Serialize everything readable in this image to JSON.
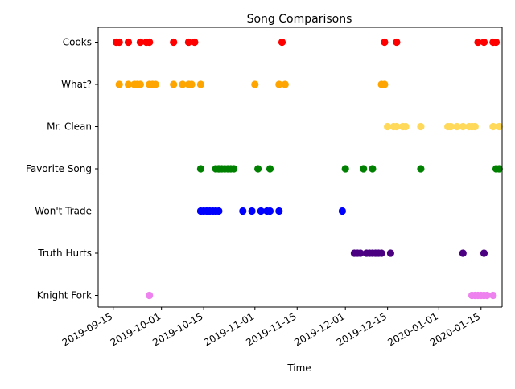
{
  "chart_data": {
    "type": "scatter",
    "title": "Song Comparisons",
    "xlabel": "Time",
    "ylabel": "",
    "x_axis": {
      "type": "date",
      "range": [
        "2019-09-10",
        "2020-01-22"
      ],
      "ticks": [
        "2019-09-15",
        "2019-10-01",
        "2019-10-15",
        "2019-11-01",
        "2019-11-15",
        "2019-12-01",
        "2019-12-15",
        "2020-01-01",
        "2020-01-15"
      ]
    },
    "categories": [
      "Cooks",
      "What?",
      "Mr. Clean",
      "Favorite Song",
      "Won't Trade",
      "Truth Hurts",
      "Knight Fork"
    ],
    "grid": false,
    "series": [
      {
        "category": "Cooks",
        "color": "#ff0000",
        "x": [
          "2019-09-16",
          "2019-09-17",
          "2019-09-20",
          "2019-09-24",
          "2019-09-26",
          "2019-09-27",
          "2019-10-05",
          "2019-10-10",
          "2019-10-12",
          "2019-11-10",
          "2019-12-14",
          "2019-12-18",
          "2020-01-14",
          "2020-01-16",
          "2020-01-19",
          "2020-01-20"
        ]
      },
      {
        "category": "What?",
        "color": "#ffa500",
        "x": [
          "2019-09-17",
          "2019-09-20",
          "2019-09-22",
          "2019-09-23",
          "2019-09-24",
          "2019-09-27",
          "2019-09-28",
          "2019-09-29",
          "2019-10-05",
          "2019-10-08",
          "2019-10-10",
          "2019-10-11",
          "2019-10-14",
          "2019-11-01",
          "2019-11-09",
          "2019-11-11",
          "2019-12-13",
          "2019-12-14"
        ]
      },
      {
        "category": "Mr. Clean",
        "color": "#ffd95a",
        "x": [
          "2019-12-15",
          "2019-12-17",
          "2019-12-18",
          "2019-12-20",
          "2019-12-21",
          "2019-12-26",
          "2020-01-04",
          "2020-01-05",
          "2020-01-07",
          "2020-01-09",
          "2020-01-11",
          "2020-01-12",
          "2020-01-13",
          "2020-01-19",
          "2020-01-21"
        ]
      },
      {
        "category": "Favorite Song",
        "color": "#008000",
        "x": [
          "2019-10-14",
          "2019-10-19",
          "2019-10-20",
          "2019-10-20",
          "2019-10-21",
          "2019-10-22",
          "2019-10-23",
          "2019-10-24",
          "2019-10-25",
          "2019-11-02",
          "2019-11-06",
          "2019-12-01",
          "2019-12-07",
          "2019-12-10",
          "2019-12-26",
          "2020-01-20",
          "2020-01-21"
        ]
      },
      {
        "category": "Won't Trade",
        "color": "#0000ff",
        "x": [
          "2019-10-14",
          "2019-10-15",
          "2019-10-16",
          "2019-10-17",
          "2019-10-18",
          "2019-10-19",
          "2019-10-20",
          "2019-10-28",
          "2019-10-31",
          "2019-11-03",
          "2019-11-05",
          "2019-11-06",
          "2019-11-09",
          "2019-11-30"
        ]
      },
      {
        "category": "Truth Hurts",
        "color": "#4b0082",
        "x": [
          "2019-12-04",
          "2019-12-05",
          "2019-12-06",
          "2019-12-08",
          "2019-12-09",
          "2019-12-10",
          "2019-12-11",
          "2019-12-12",
          "2019-12-13",
          "2019-12-16",
          "2020-01-09",
          "2020-01-16"
        ]
      },
      {
        "category": "Knight Fork",
        "color": "#ee82ee",
        "x": [
          "2019-09-27",
          "2020-01-12",
          "2020-01-13",
          "2020-01-14",
          "2020-01-15",
          "2020-01-16",
          "2020-01-17",
          "2020-01-19"
        ]
      }
    ]
  }
}
